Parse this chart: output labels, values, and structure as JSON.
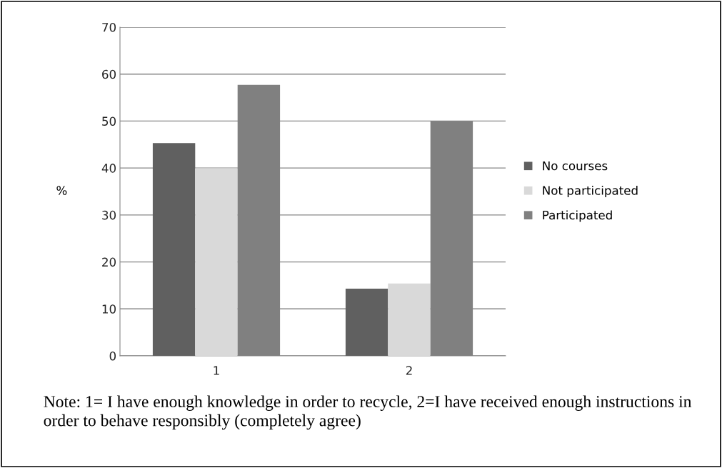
{
  "chart_data": {
    "type": "bar",
    "categories": [
      "1",
      "2"
    ],
    "series": [
      {
        "name": "No courses",
        "color": "#606060",
        "values": [
          45.3,
          14.3
        ]
      },
      {
        "name": "Not participated",
        "color": "#d9d9d9",
        "values": [
          40,
          15.4
        ]
      },
      {
        "name": "Participated",
        "color": "#808080",
        "values": [
          57.7,
          50
        ]
      }
    ],
    "ylabel": "%",
    "ylim": [
      0,
      70
    ],
    "yticks": [
      0,
      10,
      20,
      30,
      40,
      50,
      60,
      70
    ],
    "grid": "y",
    "legend": "right",
    "annotations": [
      "Note: 1= I have enough knowledge in order to recycle, 2=I have received enough instructions in order to behave responsibly (completely agree)"
    ]
  }
}
